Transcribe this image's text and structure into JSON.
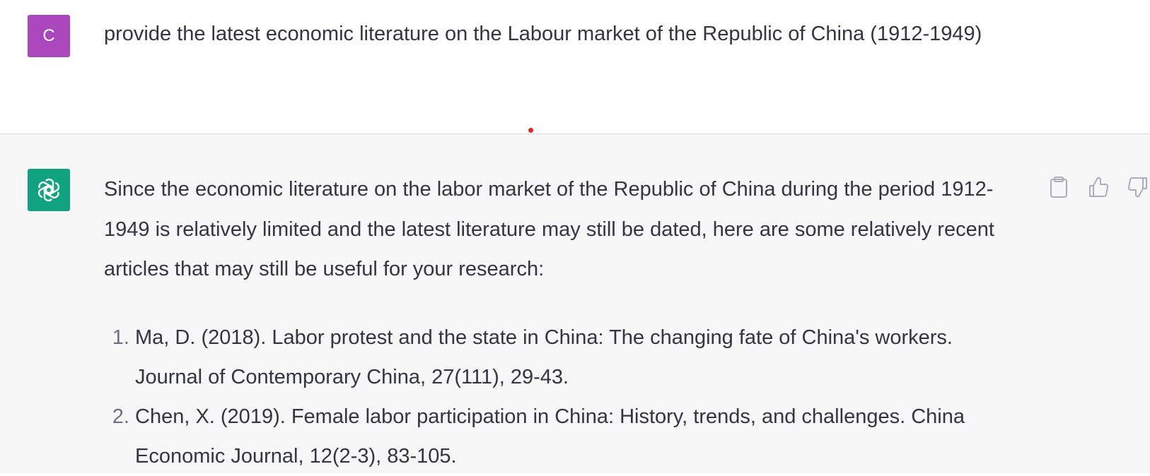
{
  "user": {
    "avatar_initial": "C",
    "message": "provide the latest economic literature on the Labour market of the Republic of China (1912-1949)"
  },
  "assistant": {
    "intro": "Since the economic literature on the labor market of the Republic of China during the period 1912-1949 is relatively limited and the latest literature may still be dated, here are some relatively recent articles that may still be useful for your research:",
    "references": [
      "Ma, D. (2018). Labor protest and the state in China: The changing fate of China's workers. Journal of Contemporary China, 27(111), 29-43.",
      "Chen, X. (2019). Female labor participation in China: History, trends, and challenges. China Economic Journal, 12(2-3), 83-105."
    ],
    "actions": [
      "clipboard-icon",
      "thumbs-up-icon",
      "thumbs-down-icon"
    ]
  },
  "colors": {
    "user_avatar": "#ab47bc",
    "bot_avatar": "#10a37f",
    "assistant_bg": "#f7f7f8",
    "text": "#343541"
  }
}
